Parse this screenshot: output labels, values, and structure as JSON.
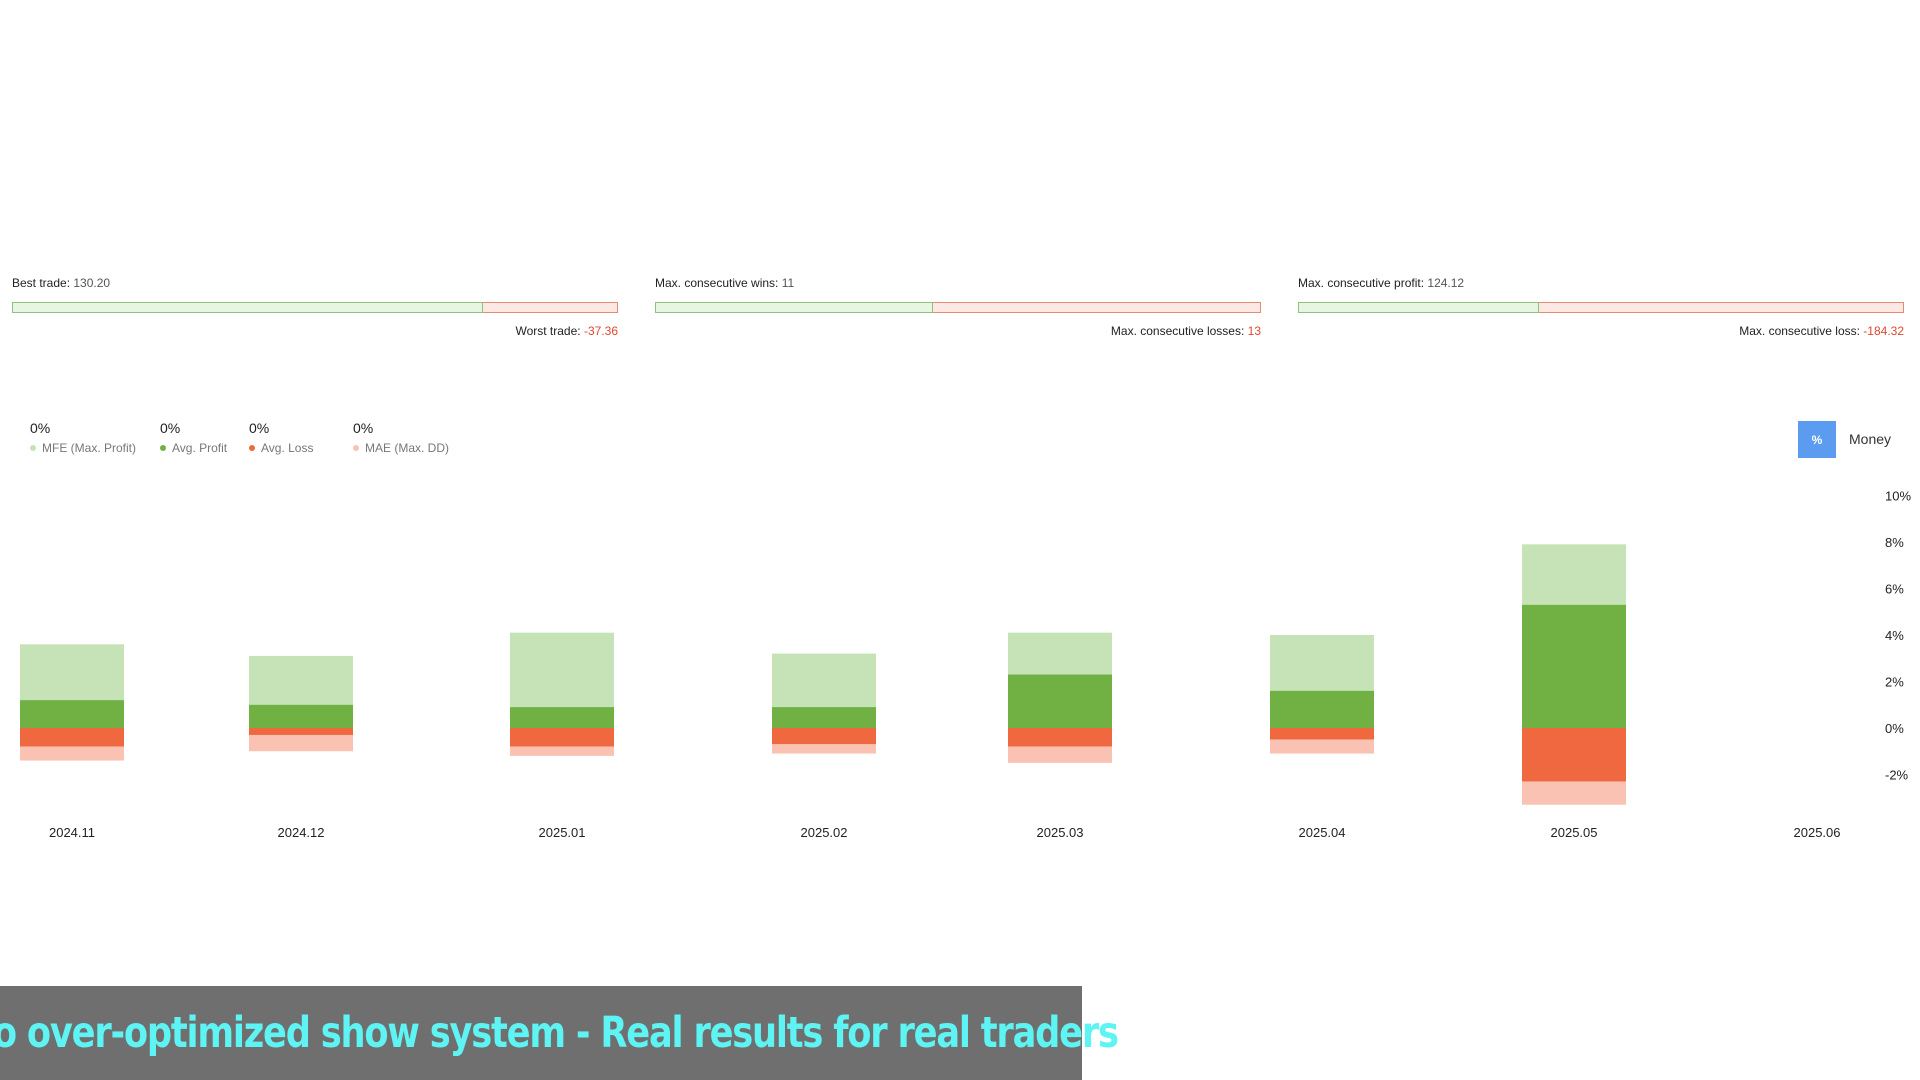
{
  "stats": [
    {
      "top_label": "Best trade:",
      "top_value": "130.20",
      "bottom_label": "Worst trade:",
      "bottom_value": "-37.36",
      "positive_fraction": 0.777
    },
    {
      "top_label": "Max. consecutive wins:",
      "top_value": "11",
      "bottom_label": "Max. consecutive losses:",
      "bottom_value": "13",
      "positive_fraction": 0.458
    },
    {
      "top_label": "Max. consecutive profit:",
      "top_value": "124.12",
      "bottom_label": "Max. consecutive loss:",
      "bottom_value": "-184.32",
      "positive_fraction": 0.398
    }
  ],
  "legend": [
    {
      "value": "0%",
      "label": "MFE (Max. Profit)",
      "color": "#c5e3b6"
    },
    {
      "value": "0%",
      "label": "Avg. Profit",
      "color": "#71b144"
    },
    {
      "value": "0%",
      "label": "Avg. Loss",
      "color": "#ef6840"
    },
    {
      "value": "0%",
      "label": "MAE (Max. DD)",
      "color": "#f9c2b3"
    }
  ],
  "toggle": {
    "percent_label": "%",
    "money_label": "Money"
  },
  "chart_data": {
    "type": "bar",
    "categories": [
      "2024.11",
      "2024.12",
      "2025.01",
      "2025.02",
      "2025.03",
      "2025.04",
      "2025.05",
      "2025.06"
    ],
    "series": [
      {
        "name": "MFE (Max. Profit)",
        "color": "#c5e3b6",
        "values": [
          3.6,
          3.1,
          4.1,
          3.2,
          4.1,
          4.0,
          7.9,
          null
        ]
      },
      {
        "name": "Avg. Profit",
        "color": "#71b144",
        "values": [
          1.2,
          1.0,
          0.9,
          0.9,
          2.3,
          1.6,
          5.3,
          null
        ]
      },
      {
        "name": "Avg. Loss",
        "color": "#ef6840",
        "values": [
          -0.8,
          -0.3,
          -0.8,
          -0.7,
          -0.8,
          -0.5,
          -2.3,
          null
        ]
      },
      {
        "name": "MAE (Max. DD)",
        "color": "#f9c2b3",
        "values": [
          -1.4,
          -1.0,
          -1.2,
          -1.1,
          -1.5,
          -1.1,
          -3.3,
          null
        ]
      }
    ],
    "y_ticks": [
      "10%",
      "8%",
      "6%",
      "4%",
      "2%",
      "0%",
      "-2%"
    ],
    "ylim": [
      -3.5,
      10
    ],
    "y_axis_side": "right",
    "grid": false
  },
  "banner": {
    "text": "No over-optimized show system - Real results for real traders"
  }
}
